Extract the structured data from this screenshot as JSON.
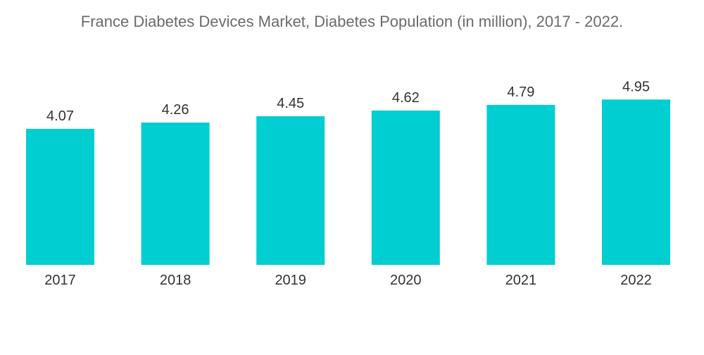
{
  "chart_data": {
    "type": "bar",
    "title": "France Diabetes Devices Market, Diabetes Population (in million), 2017 - 2022.",
    "xlabel": "",
    "ylabel": "",
    "categories": [
      "2017",
      "2018",
      "2019",
      "2020",
      "2021",
      "2022"
    ],
    "values": [
      4.07,
      4.26,
      4.45,
      4.62,
      4.79,
      4.95
    ],
    "value_labels": [
      "4.07",
      "4.26",
      "4.45",
      "4.62",
      "4.79",
      "4.95"
    ],
    "bar_color": "#00CED1",
    "grid": false,
    "legend": "none"
  }
}
